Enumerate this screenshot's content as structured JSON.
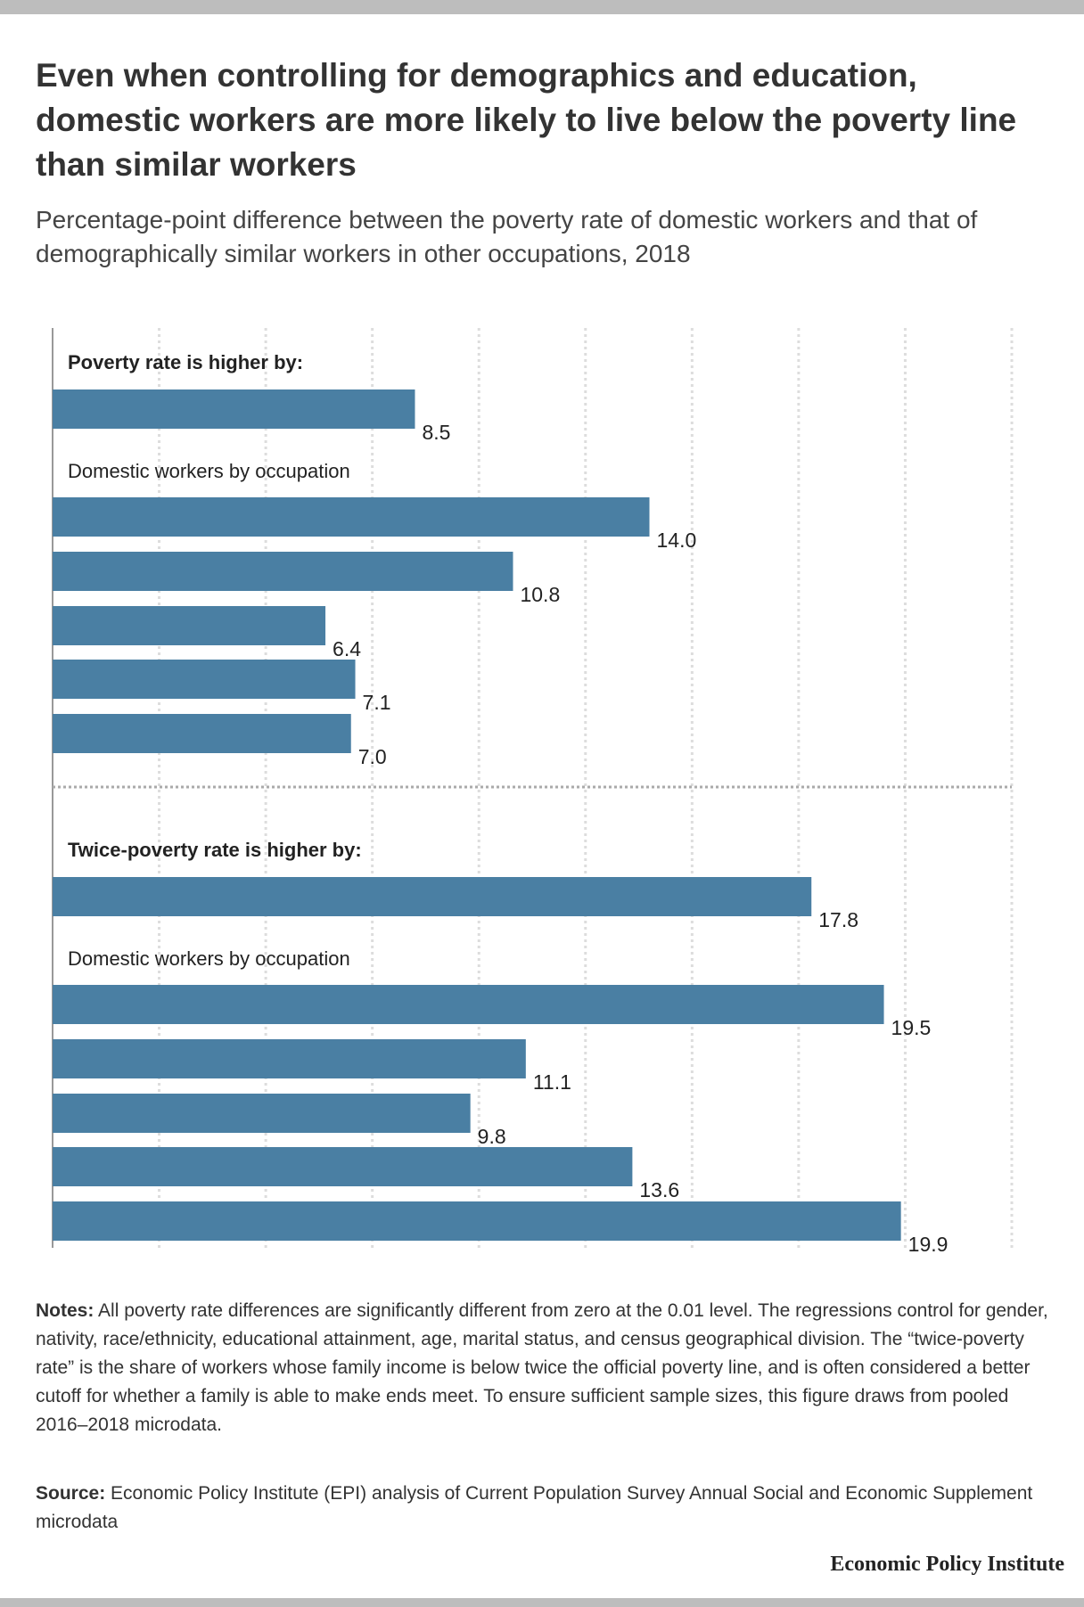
{
  "chart_data": {
    "type": "bar",
    "orientation": "horizontal",
    "title": "Even when controlling for demographics and education, domestic workers are more likely to live below the poverty line than similar workers",
    "subtitle": "Percentage-point difference between the poverty rate of domestic workers and that of demographically similar workers in other occupations, 2018",
    "color": "#4a7fa3",
    "grid": true,
    "xlim": [
      0,
      22.5
    ],
    "xticks": [
      0,
      2.5,
      5,
      7.5,
      10,
      12.5,
      15,
      17.5,
      20,
      22.5
    ],
    "panels": [
      {
        "heading": "Poverty rate is higher by:",
        "subheading": "Domestic workers by occupation",
        "categories": [
          null,
          null,
          null,
          null,
          null,
          null
        ],
        "values": [
          8.5,
          14.0,
          10.8,
          6.4,
          7.1,
          7.0
        ],
        "value_labels": [
          "8.5",
          "14.0",
          "10.8",
          "6.4",
          "7.1",
          "7.0"
        ]
      },
      {
        "heading": "Twice-poverty rate is higher by:",
        "subheading": "Domestic workers by occupation",
        "categories": [
          null,
          null,
          null,
          null,
          null,
          null
        ],
        "values": [
          17.8,
          19.5,
          11.1,
          9.8,
          13.6,
          19.9
        ],
        "value_labels": [
          "17.8",
          "19.5",
          "11.1",
          "9.8",
          "13.6",
          "19.9"
        ]
      }
    ]
  },
  "notes": {
    "label": "Notes:",
    "text": "All poverty rate differences are significantly different from zero at the 0.01 level. The regressions control for gender, nativity, race/ethnicity, educational attainment, age, marital status, and census geographical division. The “twice-poverty rate” is the share of workers whose family income is below twice the official poverty line, and is often considered a better cutoff for whether a family is able to make ends meet. To ensure sufficient sample sizes, this figure draws from pooled 2016–2018 microdata."
  },
  "source": {
    "label": "Source:",
    "text": "Economic Policy Institute (EPI) analysis of Current Population Survey Annual Social and Economic Supplement microdata"
  },
  "brand": "Economic Policy Institute"
}
